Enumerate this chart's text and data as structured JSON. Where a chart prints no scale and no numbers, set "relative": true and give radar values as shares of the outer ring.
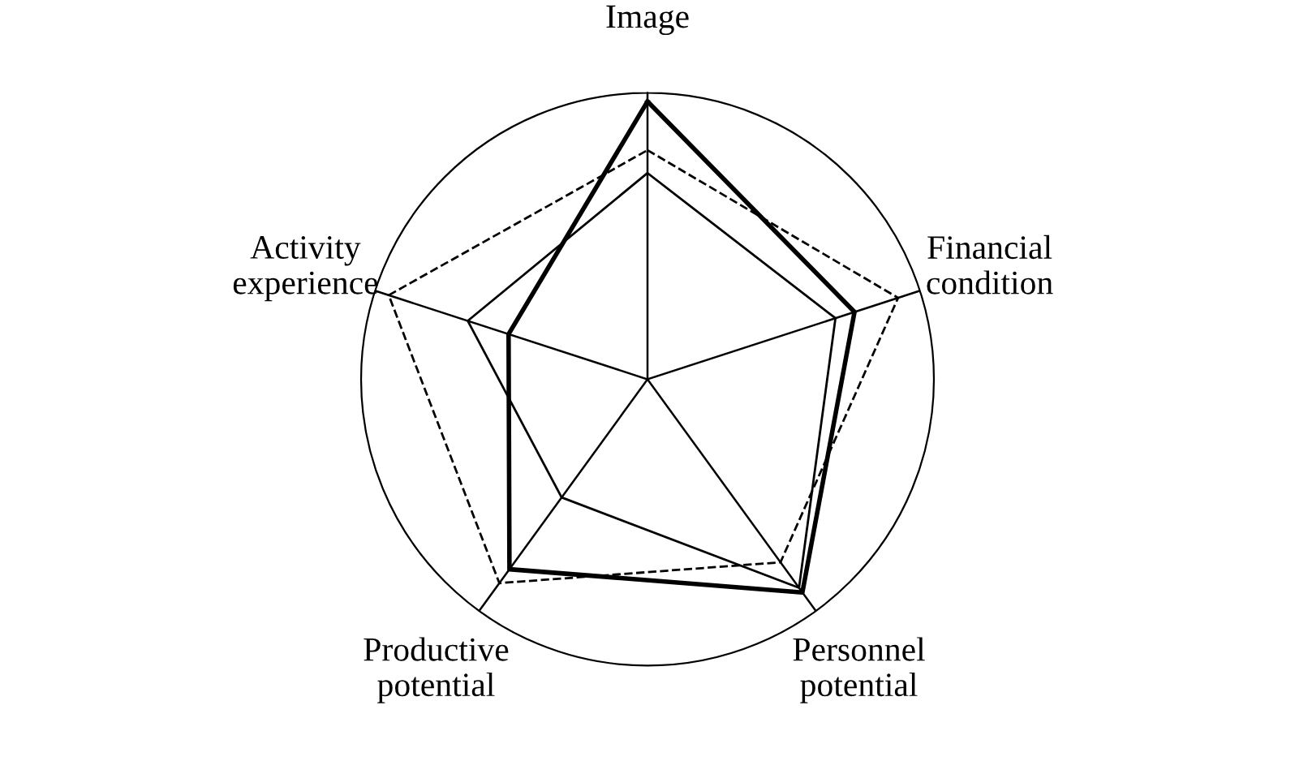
{
  "chart_data": {
    "type": "radar",
    "relative": true,
    "grid": true,
    "categories": [
      "Image",
      "Financial condition",
      "Personnel potential",
      "Productive potential",
      "Activity experience"
    ],
    "series": [
      {
        "color": "#000000",
        "line_style": "solid",
        "values": [
          0.97,
          0.76,
          0.92,
          0.82,
          0.51
        ]
      },
      {
        "color": "#000000",
        "line_style": "solid",
        "values": [
          0.72,
          0.69,
          0.9,
          0.51,
          0.66
        ]
      },
      {
        "color": "#000000",
        "line_style": "dashed",
        "values": [
          0.8,
          0.92,
          0.79,
          0.88,
          0.95
        ]
      }
    ]
  }
}
